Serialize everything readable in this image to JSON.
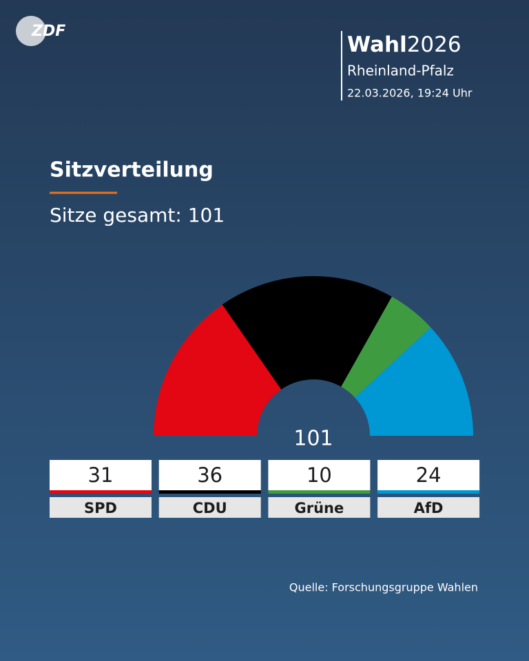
{
  "logo": "ZDF",
  "header": {
    "brand": "Wahl",
    "year": "2026",
    "region": "Rheinland-Pfalz",
    "timestamp": "22.03.2026, 19:24 Uhr"
  },
  "chart_data": {
    "type": "semidonut",
    "title": "Sitzverteilung",
    "subtitle": "Sitze gesamt: 101",
    "total": 101,
    "categories": [
      "SPD",
      "CDU",
      "Grüne",
      "AfD"
    ],
    "values": [
      31,
      36,
      10,
      24
    ],
    "colors": [
      "#e30613",
      "#000000",
      "#3f9b3f",
      "#0098d4"
    ]
  },
  "source": "Quelle: Forschungsgruppe Wahlen"
}
